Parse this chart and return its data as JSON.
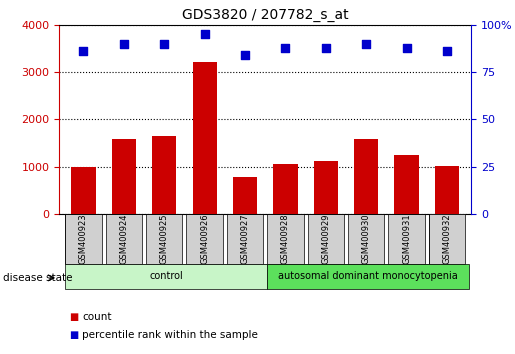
{
  "title": "GDS3820 / 207782_s_at",
  "samples": [
    "GSM400923",
    "GSM400924",
    "GSM400925",
    "GSM400926",
    "GSM400927",
    "GSM400928",
    "GSM400929",
    "GSM400930",
    "GSM400931",
    "GSM400932"
  ],
  "counts": [
    1000,
    1580,
    1650,
    3220,
    790,
    1070,
    1120,
    1590,
    1260,
    1010
  ],
  "percentile_ranks": [
    86,
    90,
    90,
    95,
    84,
    88,
    88,
    90,
    88,
    86
  ],
  "groups": [
    {
      "label": "control",
      "start": 0,
      "end": 5,
      "color": "#c8f5c8"
    },
    {
      "label": "autosomal dominant monocytopenia",
      "start": 5,
      "end": 10,
      "color": "#5ce05c"
    }
  ],
  "ylim_left": [
    0,
    4000
  ],
  "ylim_right": [
    0,
    100
  ],
  "yticks_left": [
    0,
    1000,
    2000,
    3000,
    4000
  ],
  "yticks_right": [
    0,
    25,
    50,
    75,
    100
  ],
  "bar_color": "#cc0000",
  "scatter_color": "#0000cc",
  "grid_color": "black",
  "label_count": "count",
  "label_percentile": "percentile rank within the sample",
  "disease_state_label": "disease state",
  "tick_label_bg": "#d0d0d0"
}
